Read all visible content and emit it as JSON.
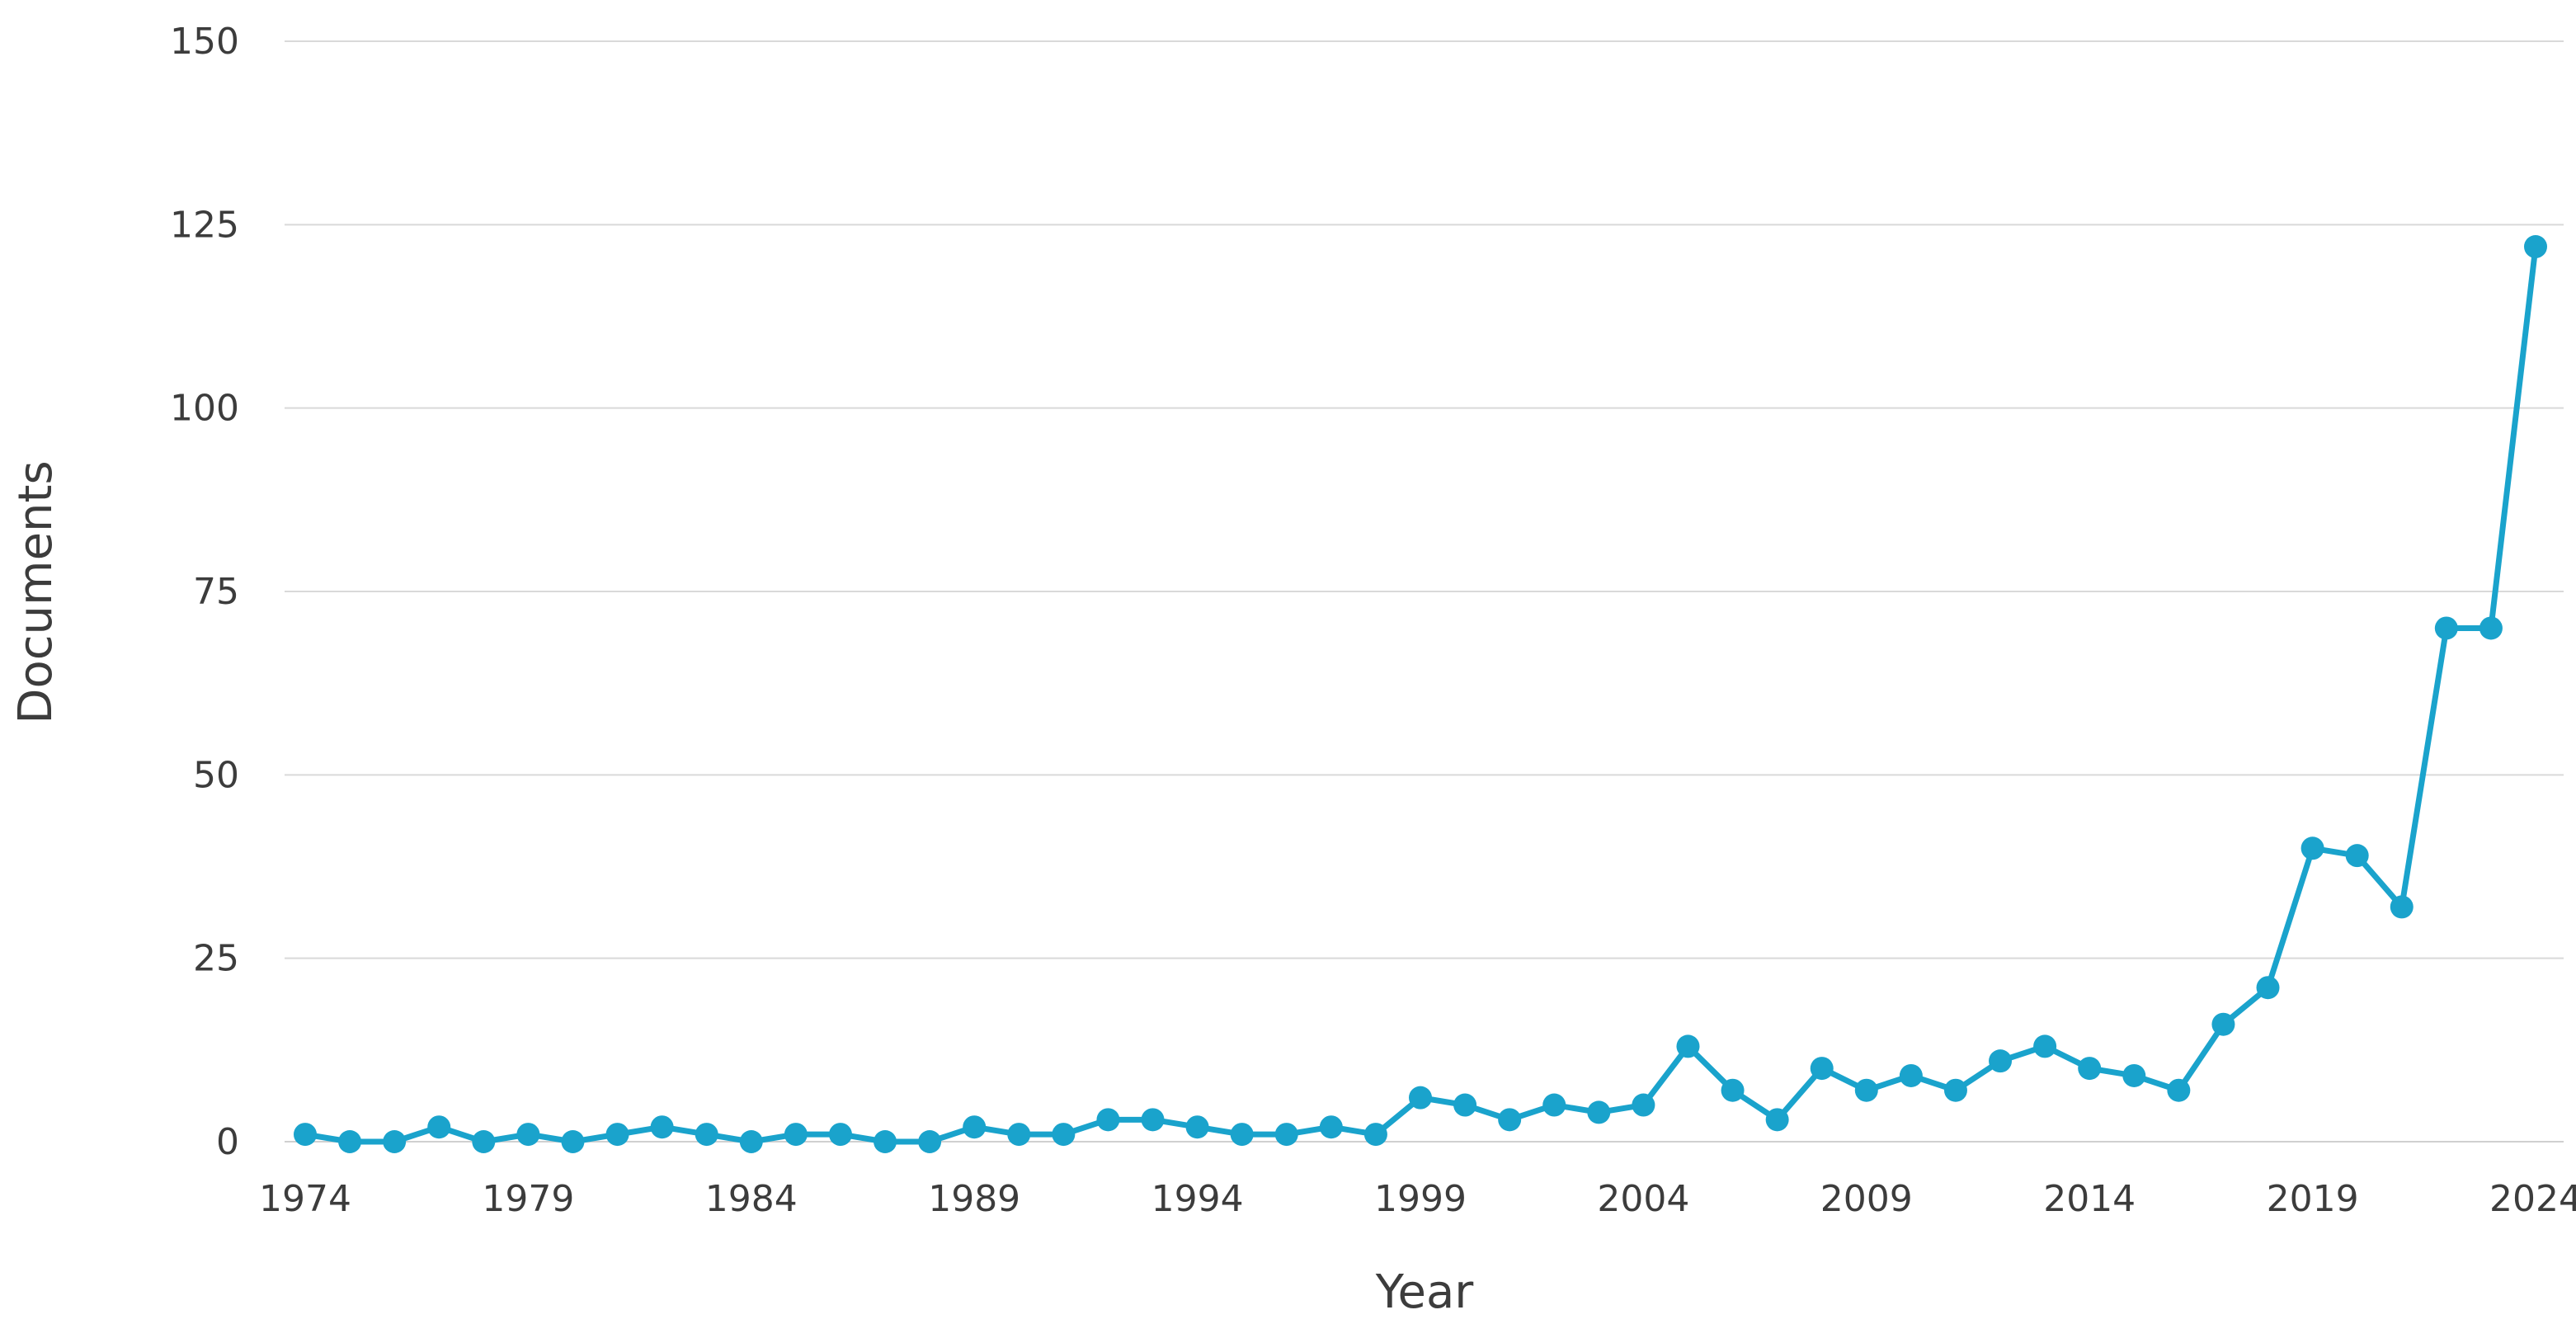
{
  "chart_data": {
    "type": "line",
    "title": "",
    "xlabel": "Year",
    "ylabel": "Documents",
    "xlim": [
      1974,
      2024
    ],
    "ylim": [
      0,
      150
    ],
    "grid": true,
    "legend": "none",
    "series_color": "#1aa3cc",
    "x_ticks": [
      "1974",
      "1979",
      "1984",
      "1989",
      "1994",
      "1999",
      "2004",
      "2009",
      "2014",
      "2019",
      "2024"
    ],
    "y_ticks": [
      "0",
      "25",
      "50",
      "75",
      "100",
      "125",
      "150"
    ],
    "x": [
      1974,
      1975,
      1976,
      1977,
      1978,
      1979,
      1980,
      1981,
      1982,
      1983,
      1984,
      1985,
      1986,
      1987,
      1988,
      1989,
      1990,
      1991,
      1992,
      1993,
      1994,
      1995,
      1996,
      1997,
      1998,
      1999,
      2000,
      2001,
      2002,
      2003,
      2004,
      2005,
      2006,
      2007,
      2008,
      2009,
      2010,
      2011,
      2012,
      2013,
      2014,
      2015,
      2016,
      2017,
      2018,
      2019,
      2020,
      2021,
      2022,
      2023,
      2024
    ],
    "series": [
      {
        "values": [
          1,
          0,
          0,
          2,
          0,
          1,
          0,
          1,
          2,
          1,
          0,
          1,
          1,
          0,
          0,
          2,
          1,
          1,
          3,
          3,
          2,
          1,
          1,
          2,
          1,
          6,
          5,
          3,
          5,
          4,
          5,
          13,
          7,
          3,
          10,
          7,
          9,
          7,
          11,
          13,
          10,
          9,
          7,
          16,
          21,
          40,
          39,
          32,
          70,
          70,
          122
        ]
      }
    ]
  }
}
